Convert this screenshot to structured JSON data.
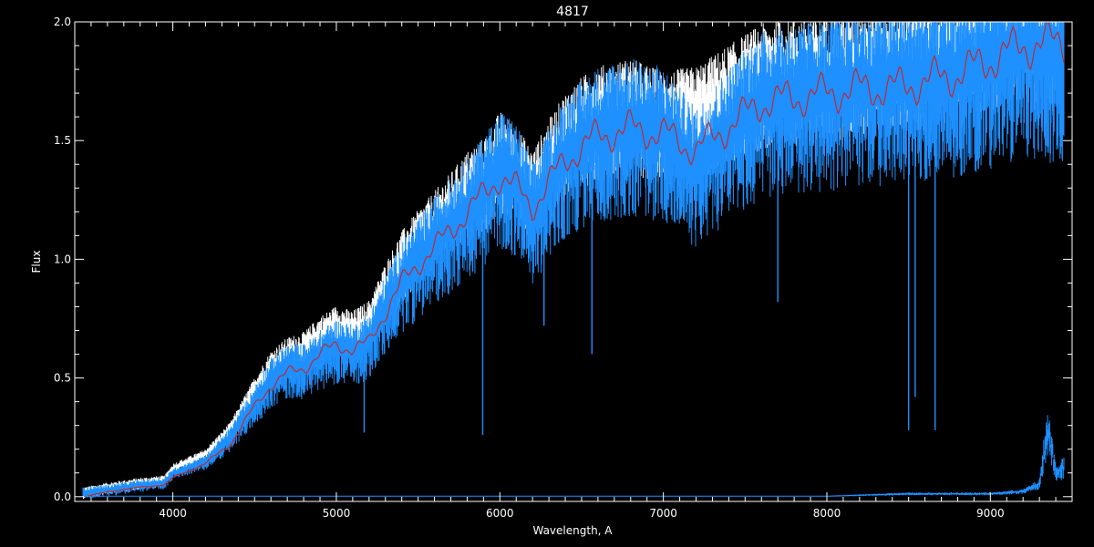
{
  "chart_data": {
    "type": "line",
    "title": "4817",
    "xlabel": "Wavelength, A",
    "ylabel": "Flux",
    "xlim": [
      3400,
      9500
    ],
    "ylim": [
      -0.02,
      2.0
    ],
    "x_ticks": [
      4000,
      5000,
      6000,
      7000,
      8000,
      9000
    ],
    "x_tick_labels": [
      "4000",
      "5000",
      "6000",
      "7000",
      "8000",
      "9000"
    ],
    "y_ticks": [
      0.0,
      0.5,
      1.0,
      1.5,
      2.0
    ],
    "y_tick_labels": [
      "0.0",
      "0.5",
      "1.0",
      "1.5",
      "2.0"
    ],
    "grid": false,
    "background": "#000000",
    "axis_color": "#ffffff",
    "series": [
      {
        "color": "#ffffff",
        "style": "observed-spectrum-behind",
        "x": [
          3450,
          3600,
          3800,
          3950,
          4000,
          4200,
          4350,
          4500,
          4600,
          4700,
          4800,
          4900,
          5000,
          5100,
          5200,
          5300,
          5400,
          5500,
          5600,
          5700,
          5800,
          5900,
          6000,
          6100,
          6200,
          6300,
          6400,
          6500,
          6600,
          6800,
          7000,
          7200,
          7400,
          7600,
          7800,
          8000,
          8200,
          8400,
          8600,
          8800,
          9000,
          9200,
          9450
        ],
        "values": [
          0.02,
          0.04,
          0.06,
          0.07,
          0.12,
          0.18,
          0.28,
          0.45,
          0.55,
          0.6,
          0.62,
          0.68,
          0.72,
          0.7,
          0.74,
          0.88,
          1.0,
          1.08,
          1.15,
          1.22,
          1.3,
          1.35,
          1.45,
          1.4,
          1.3,
          1.42,
          1.52,
          1.58,
          1.62,
          1.65,
          1.6,
          1.62,
          1.7,
          1.78,
          1.8,
          1.82,
          1.84,
          1.86,
          1.88,
          1.92,
          1.98,
          2.0,
          1.95
        ]
      },
      {
        "color": "#1e90ff",
        "style": "observed-spectrum",
        "x": [
          3450,
          3600,
          3800,
          3950,
          4000,
          4200,
          4350,
          4500,
          4600,
          4700,
          4800,
          4900,
          5000,
          5100,
          5200,
          5300,
          5400,
          5500,
          5600,
          5700,
          5800,
          5900,
          6000,
          6100,
          6200,
          6300,
          6400,
          6500,
          6600,
          6800,
          7000,
          7200,
          7400,
          7600,
          7800,
          8000,
          8200,
          8400,
          8600,
          8800,
          9000,
          9200,
          9450
        ],
        "values": [
          0.02,
          0.03,
          0.05,
          0.06,
          0.1,
          0.15,
          0.25,
          0.4,
          0.5,
          0.55,
          0.55,
          0.6,
          0.64,
          0.62,
          0.66,
          0.8,
          0.92,
          1.0,
          1.08,
          1.15,
          1.22,
          1.3,
          1.4,
          1.35,
          1.2,
          1.32,
          1.45,
          1.5,
          1.55,
          1.58,
          1.55,
          1.4,
          1.55,
          1.68,
          1.7,
          1.72,
          1.75,
          1.76,
          1.78,
          1.8,
          1.85,
          1.9,
          1.88
        ],
        "absorption_lines": [
          {
            "x": 5170,
            "value": 0.27
          },
          {
            "x": 5895,
            "value": 0.26
          },
          {
            "x": 6270,
            "value": 0.72
          },
          {
            "x": 6563,
            "value": 0.6
          },
          {
            "x": 7700,
            "value": 0.82
          },
          {
            "x": 8500,
            "value": 0.28
          },
          {
            "x": 8540,
            "value": 0.42
          },
          {
            "x": 8662,
            "value": 0.28
          }
        ]
      },
      {
        "color": "#cc2222",
        "style": "model-fit",
        "x": [
          3450,
          3600,
          3800,
          3950,
          4000,
          4200,
          4350,
          4500,
          4600,
          4700,
          4800,
          4900,
          5000,
          5100,
          5200,
          5300,
          5400,
          5500,
          5600,
          5700,
          5800,
          5900,
          6000,
          6100,
          6200,
          6300,
          6400,
          6500,
          6600,
          6800,
          7000,
          7200,
          7400,
          7600,
          7800,
          8000,
          8200,
          8400,
          8600,
          8800,
          9000,
          9200,
          9450
        ],
        "values": [
          0.0,
          0.02,
          0.04,
          0.05,
          0.08,
          0.14,
          0.22,
          0.38,
          0.47,
          0.52,
          0.54,
          0.6,
          0.64,
          0.62,
          0.65,
          0.78,
          0.9,
          0.98,
          1.05,
          1.12,
          1.2,
          1.27,
          1.35,
          1.3,
          1.22,
          1.32,
          1.42,
          1.47,
          1.52,
          1.55,
          1.53,
          1.46,
          1.56,
          1.66,
          1.68,
          1.7,
          1.72,
          1.72,
          1.75,
          1.78,
          1.84,
          1.9,
          1.92
        ]
      },
      {
        "color": "#1e90ff",
        "style": "error-spectrum",
        "x": [
          3450,
          4000,
          5000,
          6000,
          7000,
          8000,
          8500,
          9000,
          9200,
          9300,
          9350,
          9400,
          9450
        ],
        "values": [
          0.0,
          0.0,
          0.0,
          0.0,
          0.0,
          0.0,
          0.01,
          0.01,
          0.02,
          0.05,
          0.28,
          0.1,
          0.12
        ]
      }
    ]
  }
}
